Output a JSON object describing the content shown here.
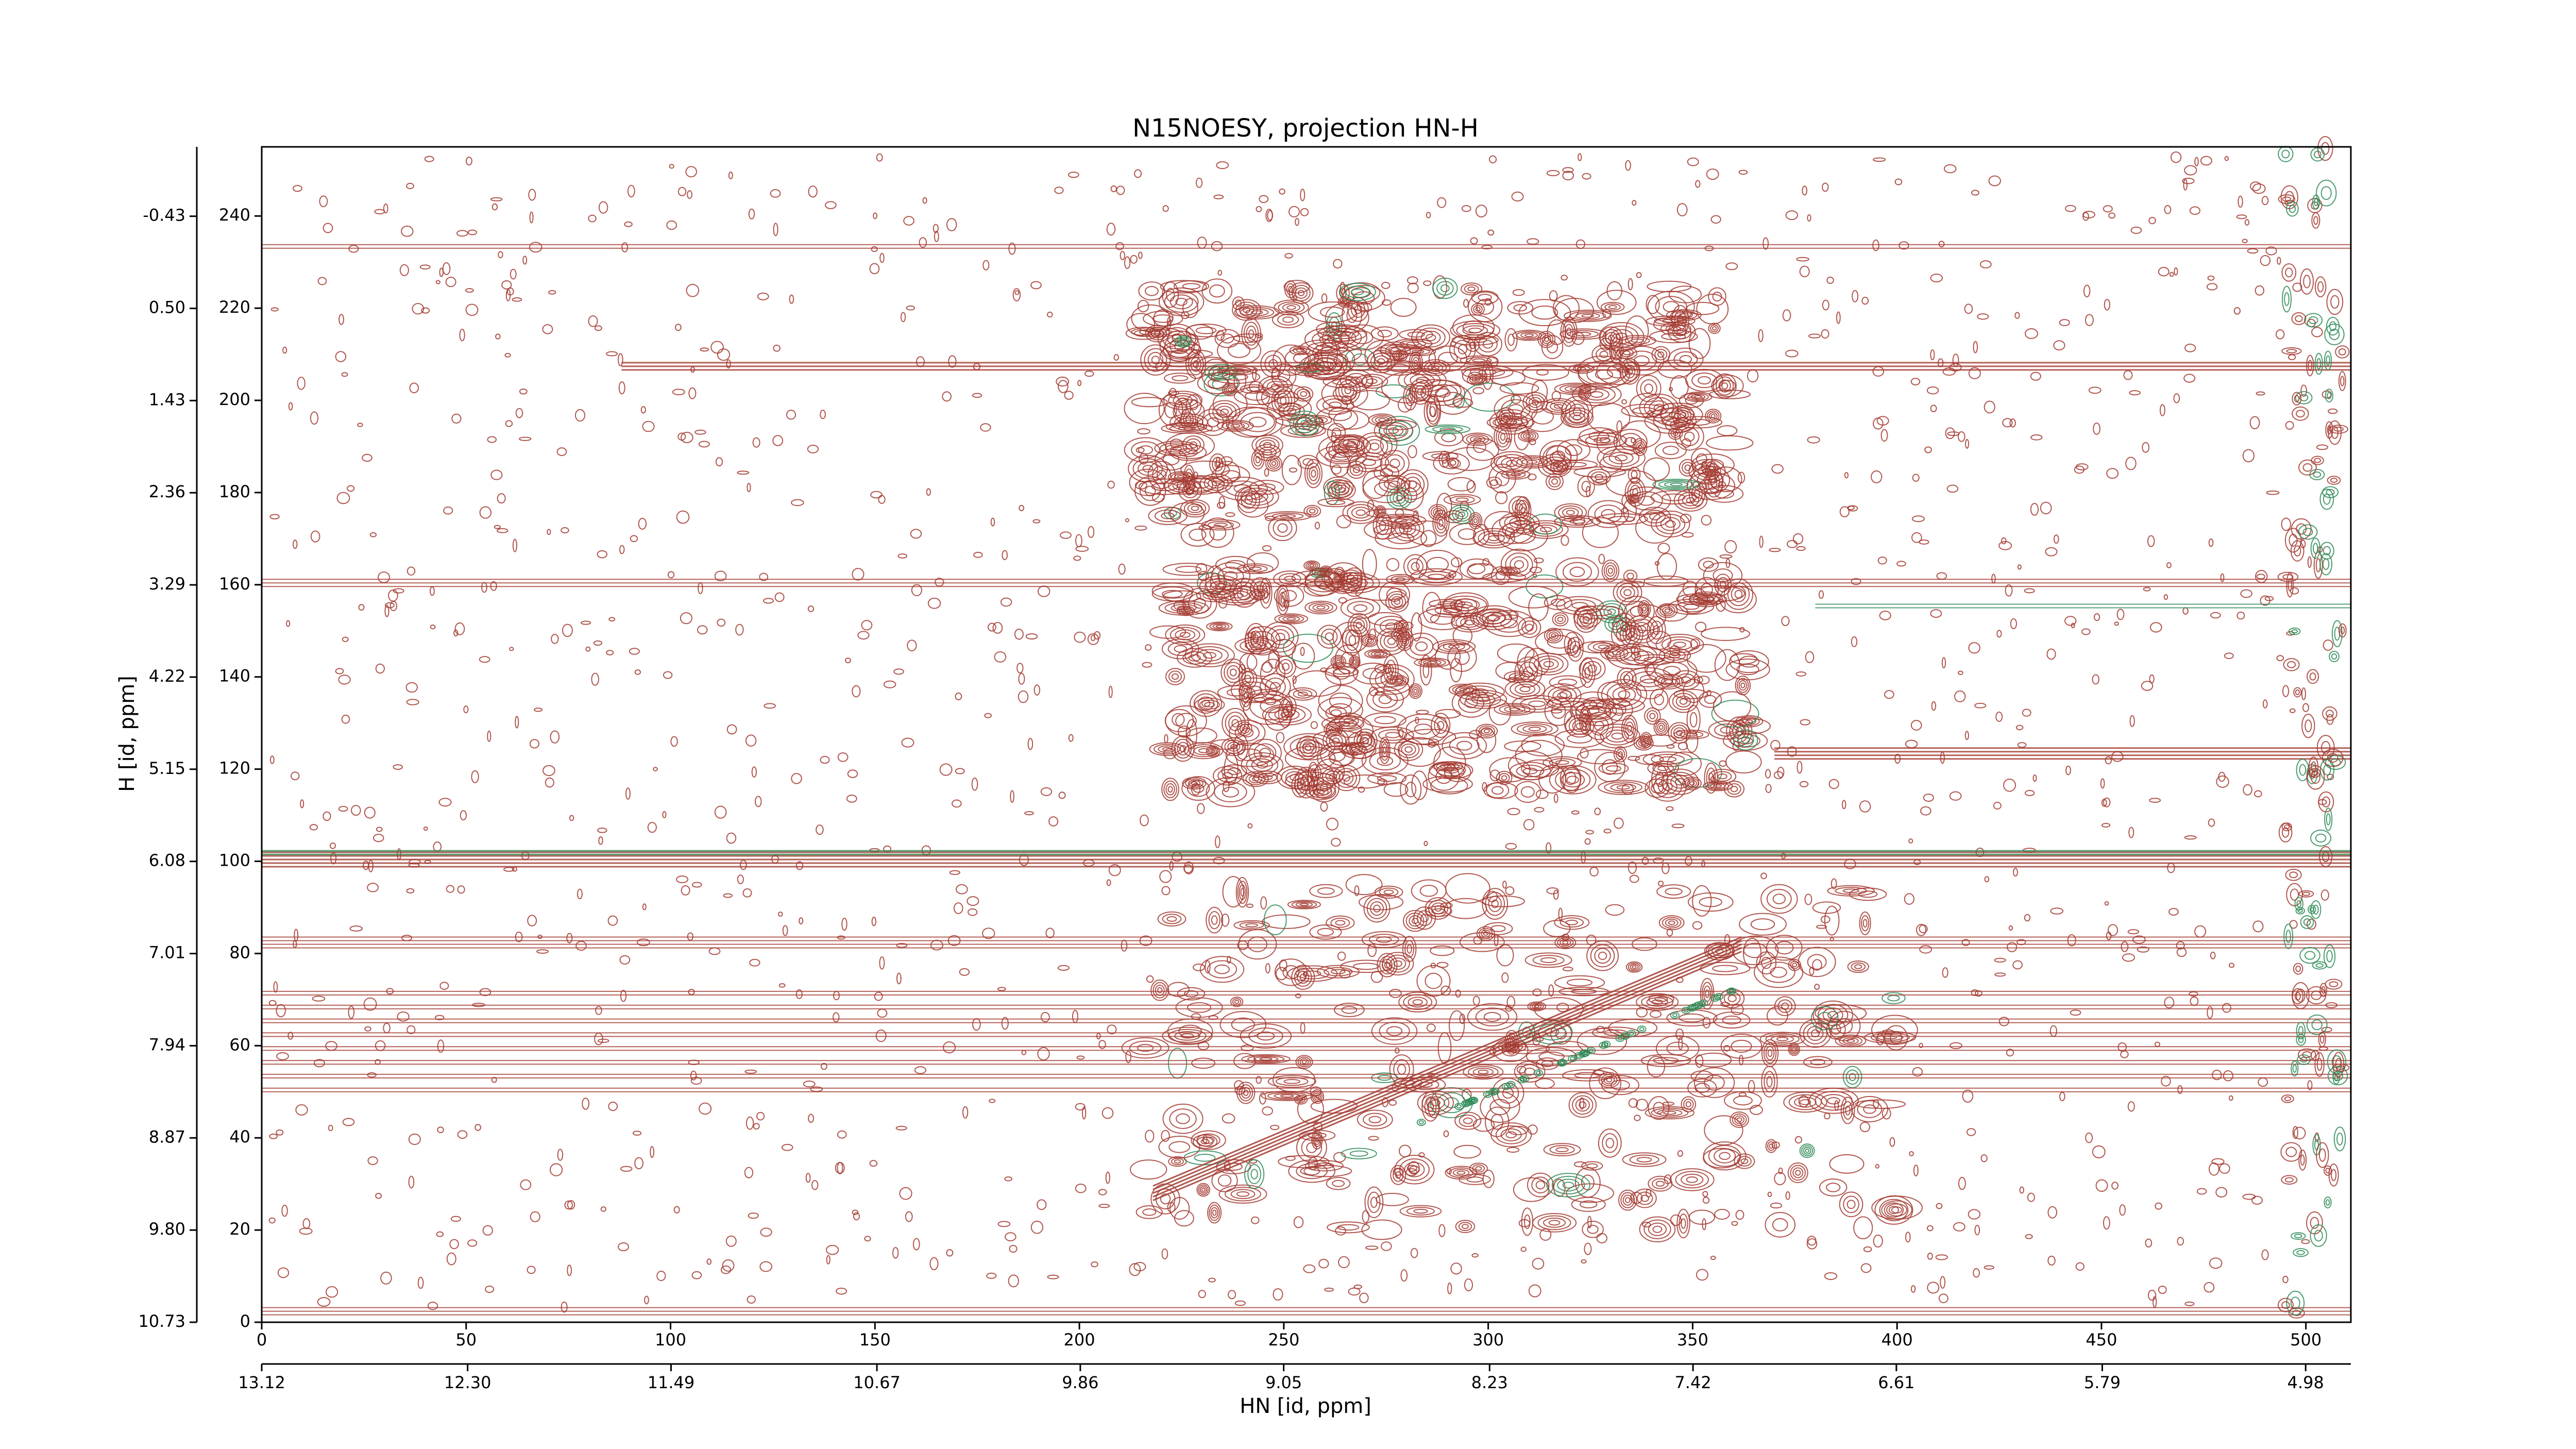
{
  "chart_data": {
    "type": "contour",
    "title": "N15NOESY, projection HN-H",
    "xlabel": "HN [id, ppm]",
    "ylabel": "H [id, ppm]",
    "xlim": [
      0,
      511
    ],
    "xticks": [
      0,
      50,
      100,
      150,
      200,
      250,
      300,
      350,
      400,
      450,
      500
    ],
    "x2lim": [
      13.12,
      4.8
    ],
    "x2ticks": [
      13.12,
      {
        "value": 12.3,
        "label": "12.30"
      },
      11.49,
      10.67,
      9.86,
      9.05,
      8.23,
      7.42,
      6.61,
      5.79,
      4.98
    ],
    "ylim": [
      0,
      255
    ],
    "yticks": [
      0,
      20,
      40,
      60,
      80,
      100,
      120,
      140,
      160,
      180,
      200,
      220,
      240
    ],
    "y2lim": [
      10.73,
      -1.13
    ],
    "y2ticks": [
      10.73,
      {
        "value": 9.8,
        "label": "9.80"
      },
      8.87,
      7.94,
      7.01,
      6.08,
      5.15,
      4.22,
      3.29,
      2.36,
      1.43,
      {
        "value": 0.5,
        "label": "0.50"
      },
      -0.43
    ],
    "positive_color": "#a33a30",
    "negative_color": "#2e8b57"
  }
}
